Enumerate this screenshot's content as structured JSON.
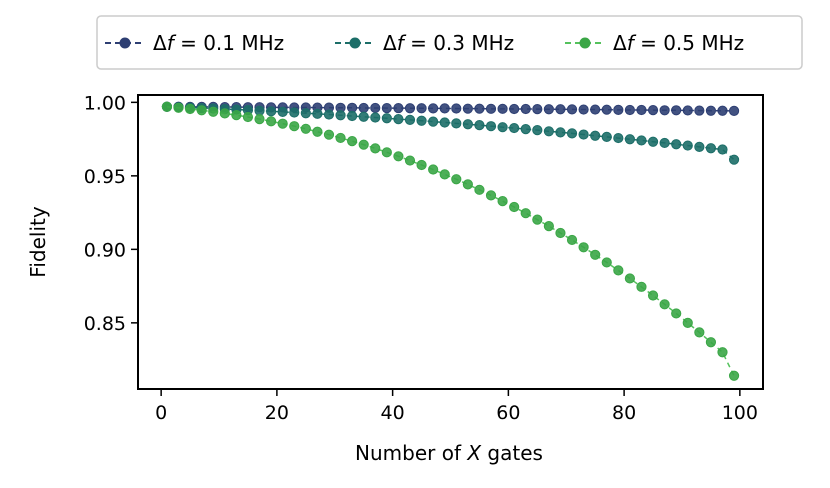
{
  "chart_data": {
    "type": "scatter",
    "xlabel_prefix": "Number of ",
    "xlabel_italic": "X",
    "xlabel_suffix": " gates",
    "ylabel": "Fidelity",
    "xlim": [
      -4,
      104
    ],
    "ylim": [
      0.805,
      1.005
    ],
    "xticks": [
      0,
      20,
      40,
      60,
      80,
      100
    ],
    "yticks": [
      0.85,
      0.9,
      0.95,
      1.0
    ],
    "ytick_labels": [
      "0.85",
      "0.90",
      "0.95",
      "1.00"
    ],
    "grid": false,
    "legend_placement": "top-center",
    "x": [
      1,
      3,
      5,
      7,
      9,
      11,
      13,
      15,
      17,
      19,
      21,
      23,
      25,
      27,
      29,
      31,
      33,
      35,
      37,
      39,
      41,
      43,
      45,
      47,
      49,
      51,
      53,
      55,
      57,
      59,
      61,
      63,
      65,
      67,
      69,
      71,
      73,
      75,
      77,
      79,
      81,
      83,
      85,
      87,
      89,
      91,
      93,
      95,
      97,
      99
    ],
    "series": [
      {
        "name_prefix": "Δ",
        "name_italic": "f",
        "name_suffix": " = 0.1 MHz",
        "color": "#2e3f73",
        "line_color": "#2e3f73",
        "values": [
          0.997,
          0.997,
          0.9969,
          0.9969,
          0.9969,
          0.9968,
          0.9968,
          0.9967,
          0.9967,
          0.9966,
          0.9966,
          0.9965,
          0.9965,
          0.9964,
          0.9964,
          0.9963,
          0.9963,
          0.9962,
          0.9962,
          0.9961,
          0.9961,
          0.996,
          0.996,
          0.9959,
          0.9959,
          0.9958,
          0.9957,
          0.9957,
          0.9956,
          0.9956,
          0.9955,
          0.9955,
          0.9954,
          0.9953,
          0.9953,
          0.9952,
          0.9951,
          0.9951,
          0.995,
          0.9949,
          0.9948,
          0.9948,
          0.9947,
          0.9946,
          0.9946,
          0.9945,
          0.9944,
          0.9943,
          0.9943,
          0.9942
        ]
      },
      {
        "name_prefix": "Δ",
        "name_italic": "f",
        "name_suffix": " = 0.3 MHz",
        "color": "#1c6e68",
        "line_color": "#1c6e68",
        "values": [
          0.997,
          0.9967,
          0.9964,
          0.9961,
          0.9958,
          0.9954,
          0.9951,
          0.9947,
          0.9943,
          0.9939,
          0.9935,
          0.9931,
          0.9926,
          0.9922,
          0.9917,
          0.9912,
          0.9907,
          0.9902,
          0.9897,
          0.9892,
          0.9886,
          0.9881,
          0.9875,
          0.9869,
          0.9863,
          0.9857,
          0.9851,
          0.9845,
          0.9838,
          0.9831,
          0.9825,
          0.9818,
          0.9811,
          0.9803,
          0.9796,
          0.9789,
          0.9781,
          0.9773,
          0.9765,
          0.9757,
          0.9749,
          0.9741,
          0.9732,
          0.9724,
          0.9715,
          0.9706,
          0.9697,
          0.9688,
          0.9679,
          0.961
        ]
      },
      {
        "name_prefix": "Δ",
        "name_italic": "f",
        "name_suffix": " = 0.5 MHz",
        "color": "#3aa646",
        "line_color": "#55c25d",
        "values": [
          0.997,
          0.9963,
          0.9955,
          0.9946,
          0.9936,
          0.9925,
          0.9913,
          0.99,
          0.9886,
          0.9871,
          0.9855,
          0.9838,
          0.982,
          0.98,
          0.978,
          0.9758,
          0.9736,
          0.9712,
          0.9687,
          0.966,
          0.9633,
          0.9604,
          0.9574,
          0.9543,
          0.951,
          0.9477,
          0.9442,
          0.9405,
          0.9367,
          0.9328,
          0.9288,
          0.9246,
          0.9202,
          0.9158,
          0.9111,
          0.9064,
          0.9014,
          0.8963,
          0.8911,
          0.8857,
          0.8802,
          0.8745,
          0.8686,
          0.8626,
          0.8564,
          0.85,
          0.8435,
          0.8368,
          0.83,
          0.814
        ]
      }
    ]
  }
}
